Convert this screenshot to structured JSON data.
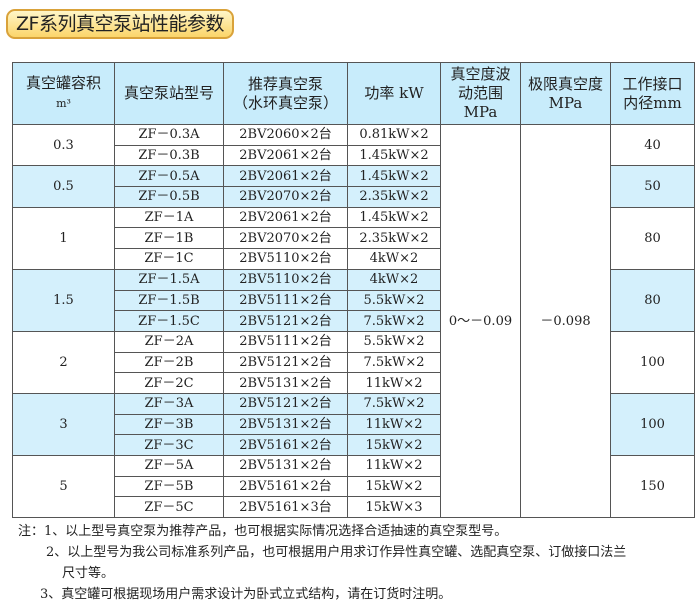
{
  "title": "ZF系列真空泵站性能参数",
  "headers": [
    "真空罐容积 m³",
    "真空泵站型号",
    "推荐真空泵（水环真空泵）",
    "功率 kW",
    "真空度波动范围 MPa",
    "极限真空度 MPa",
    "工作接口内径mm"
  ],
  "fluctuation": "0～－0.09",
  "ultimate": "－0.098",
  "colors": {
    "header": "#c8ecfb",
    "highlight": "#d4f0fc",
    "title_border": "#d9a23a"
  },
  "groups": [
    {
      "volume": "0.3",
      "bore": "40",
      "rows": [
        [
          "ZF－0.3A",
          "2BV2060×2台",
          "0.81kW×2"
        ],
        [
          "ZF－0.3B",
          "2BV2061×2台",
          "1.45kW×2"
        ]
      ]
    },
    {
      "volume": "0.5",
      "bore": "50",
      "rows": [
        [
          "ZF－0.5A",
          "2BV2061×2台",
          "1.45kW×2"
        ],
        [
          "ZF－0.5B",
          "2BV2070×2台",
          "2.35kW×2"
        ]
      ]
    },
    {
      "volume": "1",
      "bore": "80",
      "rows": [
        [
          "ZF－1A",
          "2BV2061×2台",
          "1.45kW×2"
        ],
        [
          "ZF－1B",
          "2BV2070×2台",
          "2.35kW×2"
        ],
        [
          "ZF－1C",
          "2BV5110×2台",
          "4kW×2"
        ]
      ]
    },
    {
      "volume": "1.5",
      "bore": "80",
      "rows": [
        [
          "ZF－1.5A",
          "2BV5110×2台",
          "4kW×2"
        ],
        [
          "ZF－1.5B",
          "2BV5111×2台",
          "5.5kW×2"
        ],
        [
          "ZF－1.5C",
          "2BV5121×2台",
          "7.5kW×2"
        ]
      ]
    },
    {
      "volume": "2",
      "bore": "100",
      "rows": [
        [
          "ZF－2A",
          "2BV5111×2台",
          "5.5kW×2"
        ],
        [
          "ZF－2B",
          "2BV5121×2台",
          "7.5kW×2"
        ],
        [
          "ZF－2C",
          "2BV5131×2台",
          "11kW×2"
        ]
      ]
    },
    {
      "volume": "3",
      "bore": "100",
      "rows": [
        [
          "ZF－3A",
          "2BV5121×2台",
          "7.5kW×2"
        ],
        [
          "ZF－3B",
          "2BV5131×2台",
          "11kW×2"
        ],
        [
          "ZF－3C",
          "2BV5161×2台",
          "15kW×2"
        ]
      ]
    },
    {
      "volume": "5",
      "bore": "150",
      "rows": [
        [
          "ZF－5A",
          "2BV5131×2台",
          "11kW×2"
        ],
        [
          "ZF－5B",
          "2BV5161×2台",
          "15kW×2"
        ],
        [
          "ZF－5C",
          "2BV5161×3台",
          "15kW×3"
        ]
      ]
    }
  ],
  "notes": [
    "注：1、以上型号真空泵为推荐产品，也可根据实际情况选择合适抽速的真空泵型号。",
    "2、以上型号为我公司标准系列产品，也可根据用户用求订作异性真空罐、选配真空泵、订做接口法兰",
    "尺寸等。",
    "3、真空罐可根据现场用户需求设计为卧式立式结构，请在订货时注明。"
  ]
}
